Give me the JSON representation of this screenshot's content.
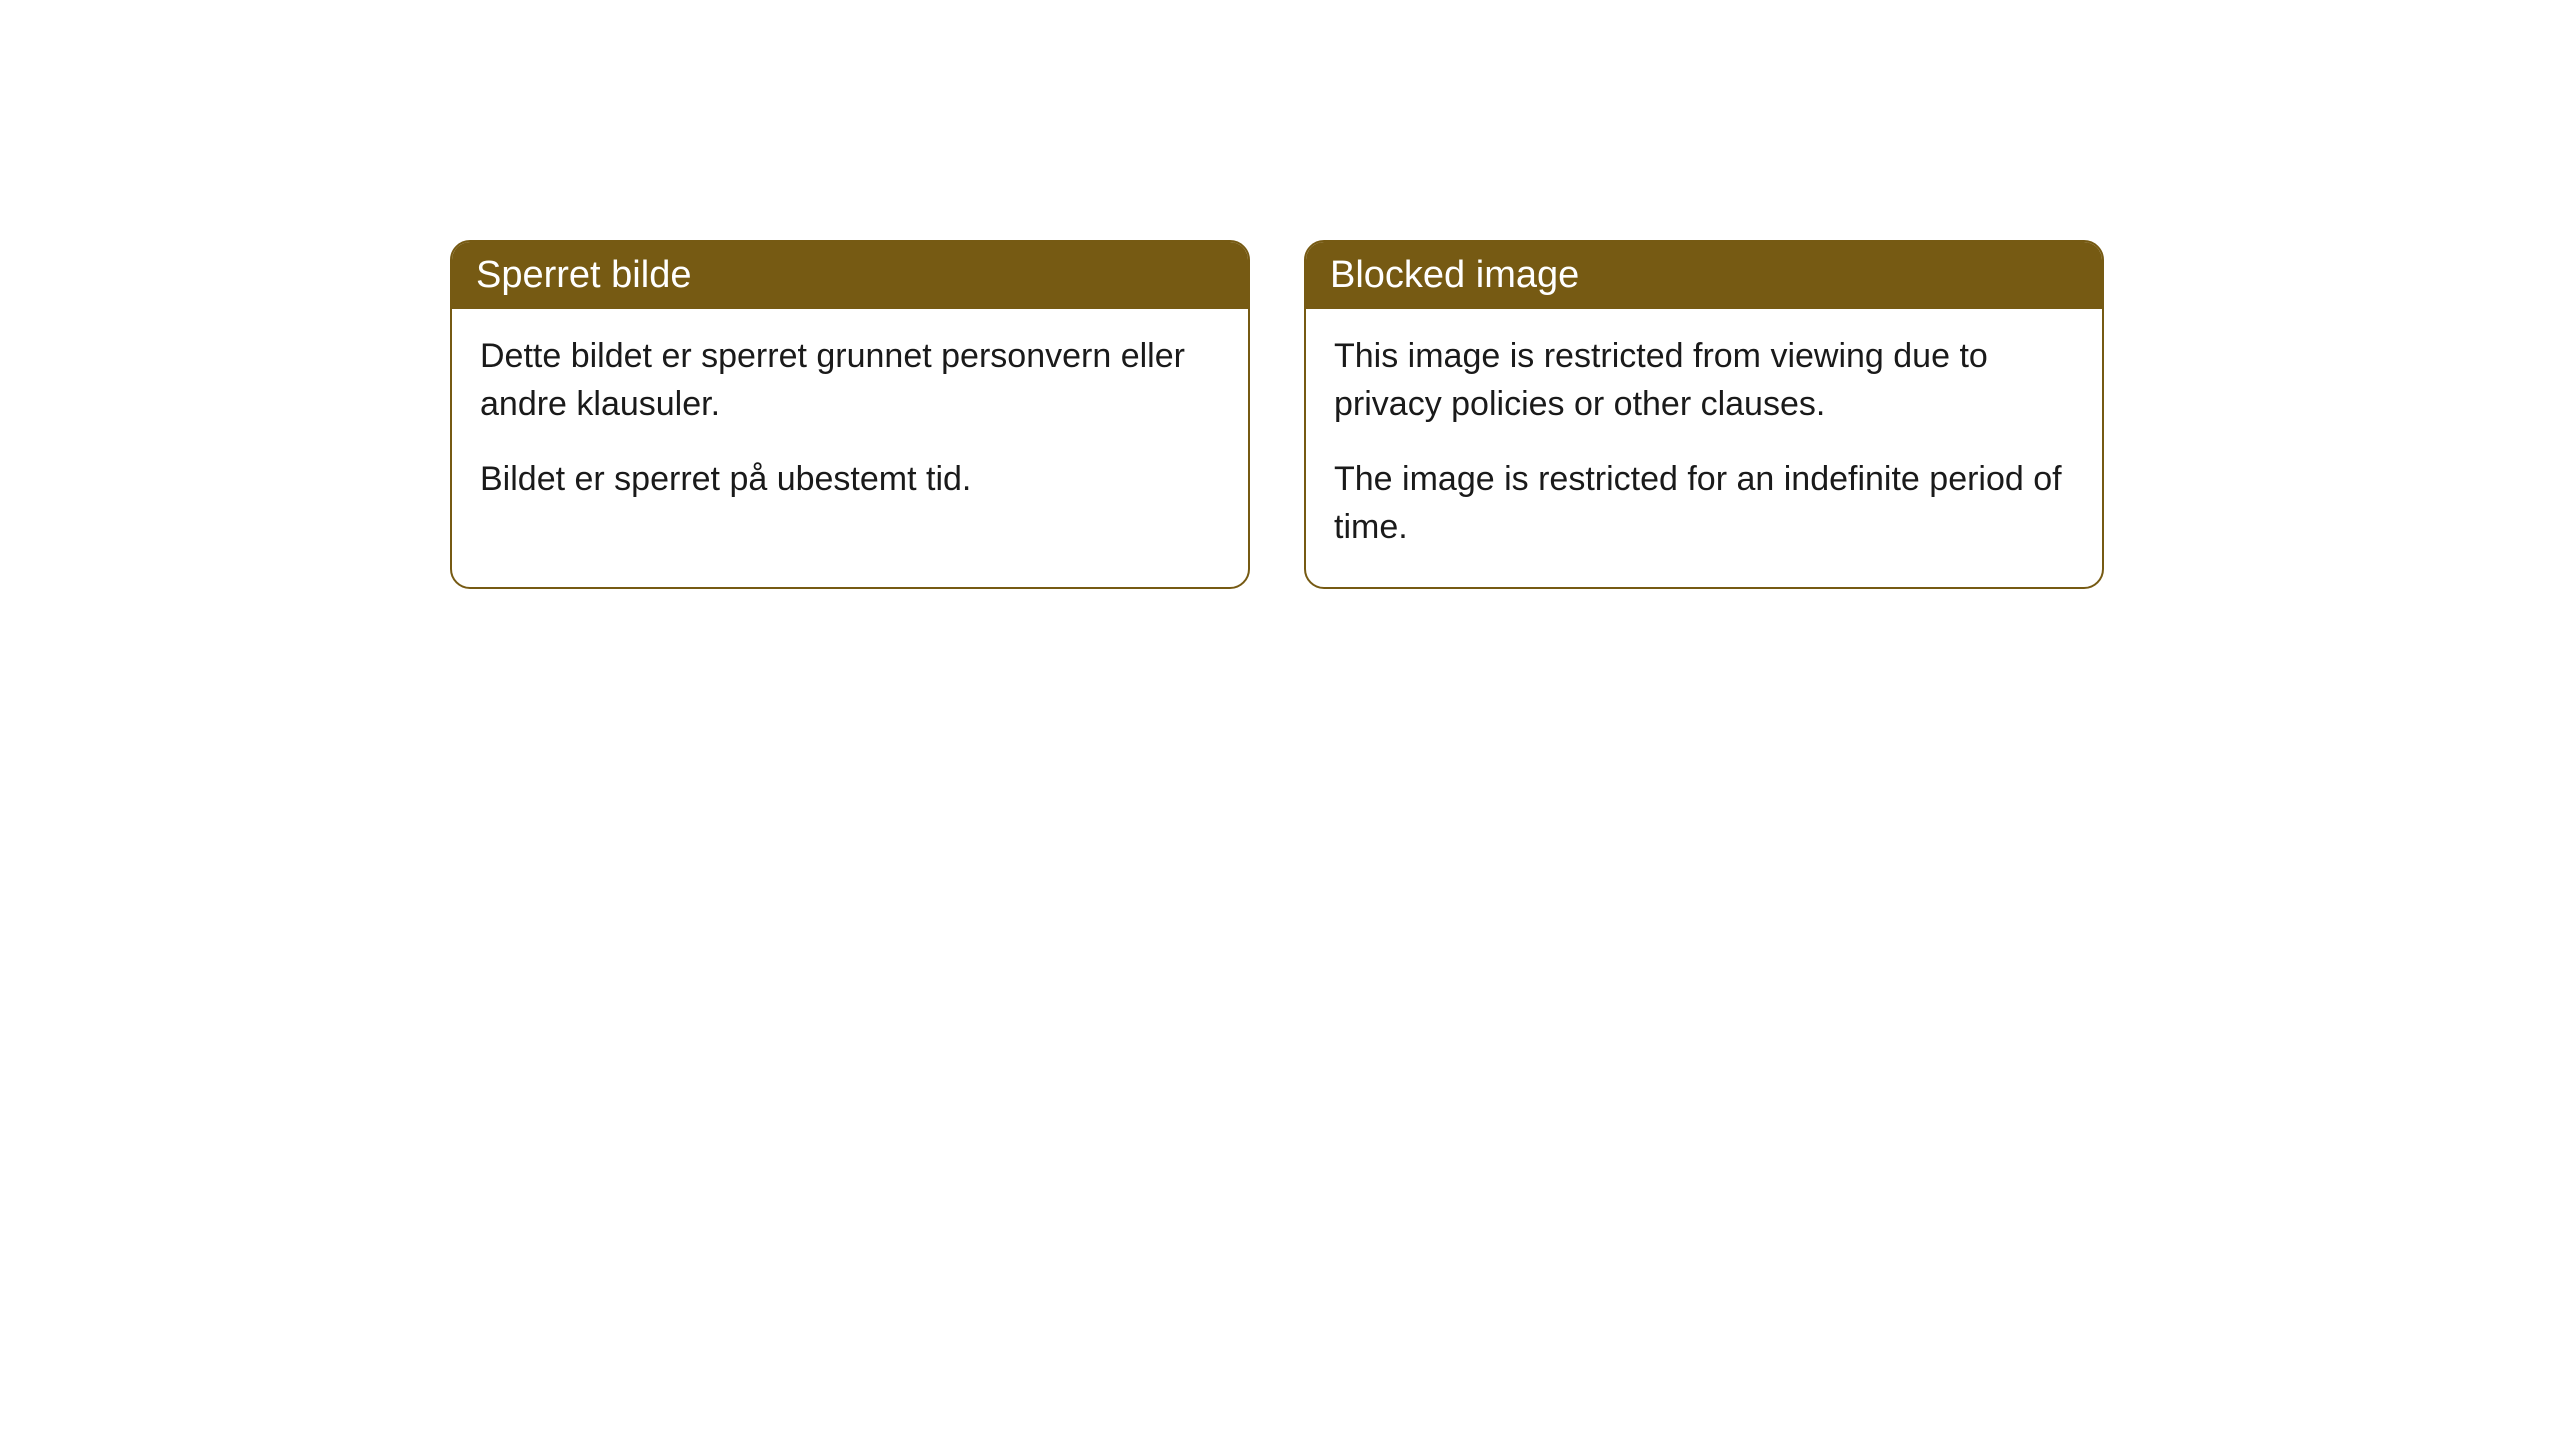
{
  "colors": {
    "header_bg": "#765a13",
    "header_text": "#ffffff",
    "border": "#765a13",
    "body_bg": "#ffffff",
    "body_text": "#1a1a1a"
  },
  "cards": [
    {
      "title": "Sperret bilde",
      "paragraphs": [
        "Dette bildet er sperret grunnet personvern eller andre klausuler.",
        "Bildet er sperret på ubestemt tid."
      ]
    },
    {
      "title": "Blocked image",
      "paragraphs": [
        "This image is restricted from viewing due to privacy policies or other clauses.",
        "The image is restricted for an indefinite period of time."
      ]
    }
  ]
}
